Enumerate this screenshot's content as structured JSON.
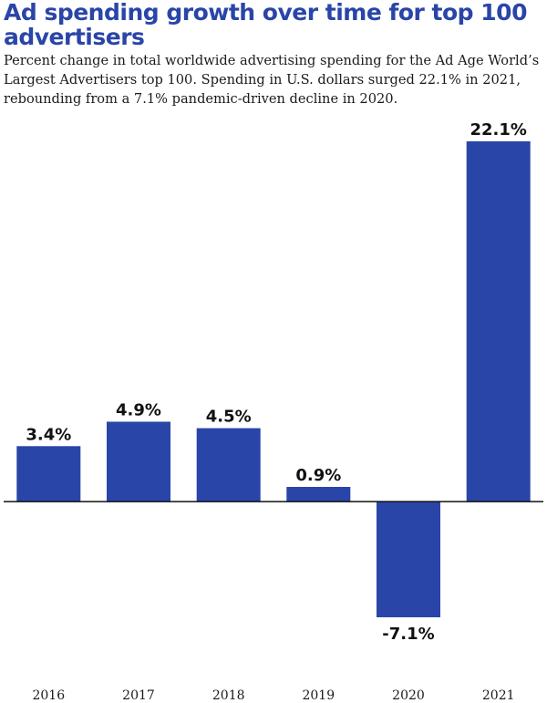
{
  "chart_data": {
    "type": "bar",
    "title": "Ad spending growth over time for top 100 advertisers",
    "subtitle": "Percent change in total worldwide advertising spending for the Ad Age World’s Largest Advertisers top 100. Spending in U.S. dollars surged 22.1% in 2021, rebounding from a 7.1% pandemic-driven decline in 2020.",
    "categories": [
      "2016",
      "2017",
      "2018",
      "2019",
      "2020",
      "2021"
    ],
    "values": [
      3.4,
      4.9,
      4.5,
      0.9,
      -7.1,
      22.1
    ],
    "data_labels": [
      "3.4%",
      "4.9%",
      "4.5%",
      "0.9%",
      "-7.1%",
      "22.1%"
    ],
    "ylim": [
      -8.5,
      22.1
    ],
    "grid": false,
    "bar_color": "#2a45a8",
    "title_color": "#2a45a8",
    "baseline_color": "#111111"
  }
}
